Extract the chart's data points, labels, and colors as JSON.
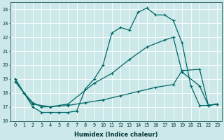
{
  "title": "",
  "xlabel": "Humidex (Indice chaleur)",
  "ylabel": "",
  "bg_color": "#cce8e8",
  "line_color": "#006666",
  "grid_color": "#ffffff",
  "xlim": [
    -0.5,
    23.5
  ],
  "ylim": [
    16.0,
    24.5
  ],
  "yticks": [
    16,
    17,
    18,
    19,
    20,
    21,
    22,
    23,
    24
  ],
  "xticks": [
    0,
    1,
    2,
    3,
    4,
    5,
    6,
    7,
    8,
    9,
    10,
    11,
    12,
    13,
    14,
    15,
    16,
    17,
    18,
    19,
    20,
    21,
    22,
    23
  ],
  "line1_x": [
    0,
    1,
    2,
    3,
    4,
    5,
    6,
    7,
    8,
    9,
    10,
    11,
    12,
    13,
    14,
    15,
    16,
    17,
    18,
    19,
    20,
    21,
    22,
    23
  ],
  "line1_y": [
    19.0,
    18.0,
    17.0,
    16.6,
    16.6,
    16.6,
    16.6,
    16.7,
    18.3,
    19.0,
    20.0,
    22.3,
    22.7,
    22.5,
    23.8,
    24.1,
    23.6,
    23.6,
    23.2,
    21.6,
    18.5,
    17.1,
    17.1,
    17.2
  ],
  "line2_x": [
    0,
    1,
    2,
    3,
    4,
    5,
    6,
    9,
    11,
    13,
    15,
    17,
    18,
    19,
    21,
    22,
    23
  ],
  "line2_y": [
    19.0,
    18.0,
    17.3,
    17.0,
    17.0,
    17.1,
    17.2,
    18.7,
    19.4,
    20.4,
    21.3,
    21.8,
    22.0,
    19.5,
    18.5,
    17.1,
    17.2
  ],
  "line3_x": [
    0,
    2,
    4,
    6,
    8,
    10,
    12,
    14,
    16,
    18,
    19,
    21,
    22,
    23
  ],
  "line3_y": [
    18.8,
    17.2,
    17.0,
    17.1,
    17.3,
    17.5,
    17.8,
    18.1,
    18.4,
    18.6,
    19.6,
    19.7,
    17.1,
    17.2
  ]
}
